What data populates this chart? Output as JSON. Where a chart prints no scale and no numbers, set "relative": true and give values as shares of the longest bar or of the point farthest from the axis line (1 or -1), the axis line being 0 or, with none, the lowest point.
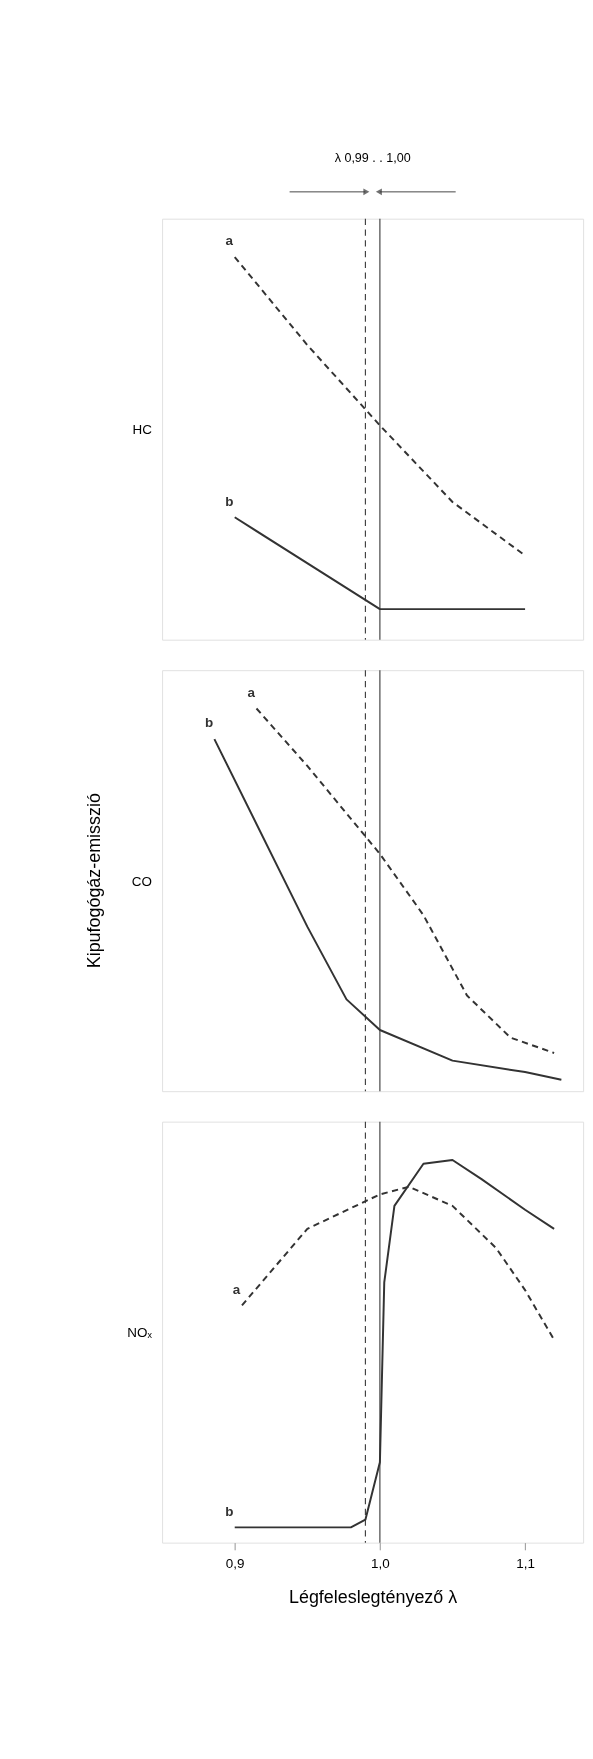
{
  "chart_data": [
    {
      "type": "line",
      "ylabel": "HC",
      "relative": true,
      "xlim": [
        0.85,
        1.14
      ],
      "tick_labels": false,
      "annotations": [
        "λ  0,99 . . 1,00"
      ],
      "ref_lines": [
        {
          "axis": "x",
          "value": 0.99,
          "line_style": "dashed",
          "color": "#333333"
        },
        {
          "axis": "x",
          "value": 1.0,
          "line_style": "solid",
          "color": "#333333"
        }
      ],
      "series": [
        {
          "name": "a",
          "color": "#333333",
          "line_style": "dashed",
          "x": [
            0.9,
            0.95,
            1.0,
            1.05,
            1.1
          ],
          "values": [
            1,
            0.77,
            0.56,
            0.36,
            0.22
          ]
        },
        {
          "name": "b",
          "color": "#333333",
          "line_style": "solid",
          "x": [
            0.9,
            1.0,
            1.1
          ],
          "values": [
            0.32,
            0.08,
            0.08
          ]
        }
      ]
    },
    {
      "type": "line",
      "ylabel": "CO",
      "relative": true,
      "xlim": [
        0.85,
        1.14
      ],
      "tick_labels": false,
      "annotations": [
        "Kipufogógáz-emisszió"
      ],
      "ref_lines": [
        {
          "axis": "x",
          "value": 0.99,
          "line_style": "dashed",
          "color": "#333333"
        },
        {
          "axis": "x",
          "value": 1.0,
          "line_style": "solid",
          "color": "#333333"
        }
      ],
      "series": [
        {
          "name": "a",
          "color": "#333333",
          "line_style": "dashed",
          "x": [
            0.915,
            0.95,
            1.0,
            1.03,
            1.06,
            1.09,
            1.12
          ],
          "values": [
            1,
            0.85,
            0.62,
            0.46,
            0.25,
            0.14,
            0.1
          ]
        },
        {
          "name": "b",
          "color": "#333333",
          "line_style": "solid",
          "x": [
            0.886,
            0.95,
            0.977,
            1.0,
            1.05,
            1.1,
            1.125
          ],
          "values": [
            0.92,
            0.43,
            0.24,
            0.16,
            0.08,
            0.05,
            0.03
          ]
        }
      ]
    },
    {
      "type": "line",
      "ylabel": "NOₓ",
      "xlabel": "Légfeleslegtényező λ",
      "relative": true,
      "xlim": [
        0.85,
        1.14
      ],
      "tick_labels": "x",
      "xticks": [
        {
          "value": 0.9,
          "label": "0,9"
        },
        {
          "value": 1.0,
          "label": "1,0"
        },
        {
          "value": 1.1,
          "label": "1,1"
        }
      ],
      "ref_lines": [
        {
          "axis": "x",
          "value": 0.99,
          "line_style": "dashed",
          "color": "#333333"
        },
        {
          "axis": "x",
          "value": 1.0,
          "line_style": "solid",
          "color": "#333333"
        }
      ],
      "series": [
        {
          "name": "a",
          "color": "#333333",
          "line_style": "dashed",
          "x": [
            0.905,
            0.95,
            1.0,
            1.02,
            1.05,
            1.08,
            1.1,
            1.12
          ],
          "values": [
            0.62,
            0.82,
            0.91,
            0.93,
            0.88,
            0.77,
            0.66,
            0.53
          ]
        },
        {
          "name": "b",
          "color": "#333333",
          "line_style": "solid",
          "x": [
            0.9,
            0.98,
            0.99,
            1.0,
            1.003,
            1.01,
            1.03,
            1.05,
            1.07,
            1.1,
            1.12
          ],
          "values": [
            0.04,
            0.04,
            0.06,
            0.21,
            0.68,
            0.88,
            0.99,
            1,
            0.95,
            0.87,
            0.82
          ]
        }
      ]
    }
  ]
}
